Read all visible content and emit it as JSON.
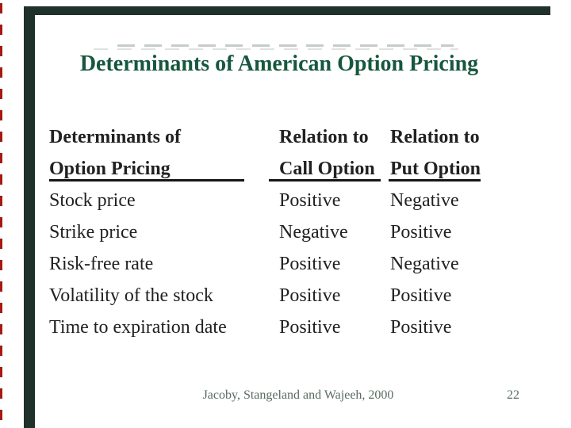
{
  "slide": {
    "title": "Determinants of American Option Pricing",
    "footer": "Jacoby, Stangeland and Wajeeh, 2000",
    "page_number": "22",
    "colors": {
      "title_green": "#17573e",
      "border_bar": "#20302a",
      "body_text": "#212121",
      "footer_text": "#5a6c61",
      "edge_artifact_red": "#a31a12"
    }
  },
  "table": {
    "header": {
      "col1_line1": "Determinants of",
      "col1_line2": "Option Pricing",
      "col2_line1": "Relation to",
      "col2_line2": "Call Option",
      "col3_line1": "Relation to",
      "col3_line2": "Put Option"
    },
    "rows": [
      {
        "determinant": "Stock price",
        "call": "Positive",
        "put": "Negative"
      },
      {
        "determinant": "Strike price",
        "call": "Negative",
        "put": "Positive"
      },
      {
        "determinant": "Risk-free rate",
        "call": "Positive",
        "put": "Negative"
      },
      {
        "determinant": "Volatility of the stock",
        "call": "Positive",
        "put": "Positive"
      },
      {
        "determinant": "Time to expiration date",
        "call": "Positive",
        "put": "Positive"
      }
    ]
  }
}
